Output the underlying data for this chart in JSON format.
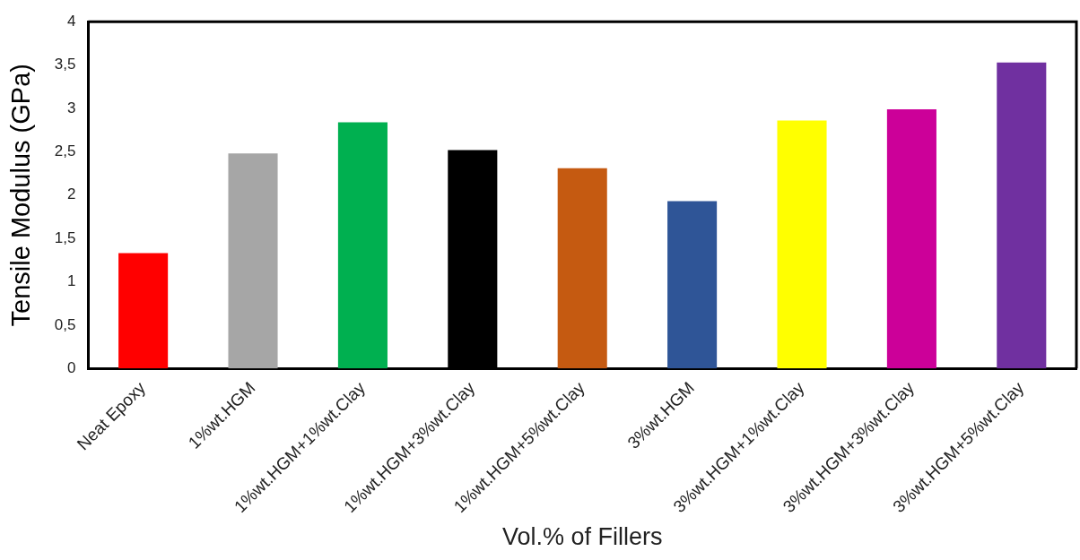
{
  "chart_data": {
    "type": "bar",
    "xlabel": "Vol.% of Fillers",
    "ylabel": "Tensile Modulus (GPa)",
    "categories": [
      "Neat Epoxy",
      "1%wt.HGM",
      "1%wt.HGM+1%wt.Clay",
      "1%wt.HGM+3%wt.Clay",
      "1%wt.HGM+5%wt.Clay",
      "3%wt.HGM",
      "3%wt.HGM+1%wt.Clay",
      "3%wt.HGM+3%wt.Clay",
      "3%wt.HGM+5%wt.Clay"
    ],
    "values": [
      1.33,
      2.48,
      2.84,
      2.52,
      2.31,
      1.93,
      2.86,
      2.99,
      3.53
    ],
    "colors": [
      "#ff0000",
      "#a6a6a6",
      "#00b050",
      "#000000",
      "#c55a11",
      "#2f5597",
      "#ffff00",
      "#cc0099",
      "#7030a0"
    ],
    "ylim": [
      0,
      4
    ],
    "yticks": [
      0,
      {
        "value": 0.5,
        "label": "0,5"
      },
      1,
      {
        "value": 1.5,
        "label": "1,5"
      },
      2,
      {
        "value": 2.5,
        "label": "2,5"
      },
      3,
      {
        "value": 3.5,
        "label": "3,5"
      },
      4
    ],
    "grid": false,
    "legend": false
  }
}
